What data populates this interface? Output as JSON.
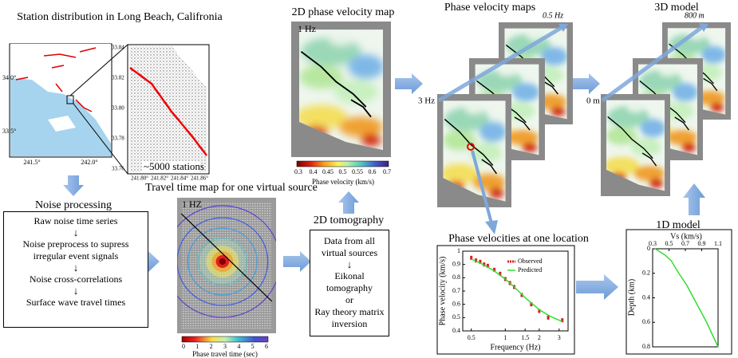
{
  "station_panel": {
    "title": "Station distribution in Long Beach, Califronia",
    "regional_map": {
      "lat_labels": [
        "34.0°",
        "33.5°"
      ],
      "lon_labels": [
        "241.5°",
        "242.0°"
      ]
    },
    "zoom_map": {
      "lat_labels": [
        "33.84",
        "33.82",
        "33.80",
        "33.78",
        "33.76"
      ],
      "lon_labels": [
        "241.80°",
        "241.82°",
        "241.84°",
        "241.86°"
      ],
      "caption": "~5000 stations"
    }
  },
  "noise_processing": {
    "title": "Noise processing",
    "steps": [
      "Raw noise time series",
      "Noise preprocess to supress irregular event signals",
      "Noise cross-correlations",
      "Surface wave travel times"
    ]
  },
  "travel_time_map": {
    "title": "Travel time map for one virtual source",
    "frequency": "1 HZ",
    "colorbar": {
      "ticks": [
        "0",
        "1",
        "2",
        "3",
        "4",
        "5",
        "6"
      ],
      "label": "Phase travel time (sec)"
    }
  },
  "tomography": {
    "title": "2D tomography",
    "lines": [
      "Data from all virtual sources",
      "Eikonal tomography",
      "or",
      "Ray theory matrix inversion"
    ]
  },
  "phase_velocity_map": {
    "title": "2D phase velocity map",
    "frequency": "1 Hz",
    "colorbar": {
      "ticks": [
        "0.3",
        "0.4",
        "0.45",
        "0.5",
        "0.55",
        "0.6",
        "0.7"
      ],
      "label": "Phase velocity (km/s)"
    }
  },
  "phase_velocity_maps": {
    "title": "Phase velocity maps",
    "low_frequency": "0.5 Hz",
    "high_frequency": "3 Hz"
  },
  "model_3d": {
    "title": "3D model",
    "bottom_depth": "800 m",
    "top_depth": "0 m"
  },
  "dispersion_plot": {
    "type": "scatter",
    "title": "Phase velocities at one location",
    "x_label": "Frequency (Hz)",
    "y_label": "Phase velocity (km/s)",
    "x_log": true,
    "xlim": [
      0.42,
      3.6
    ],
    "xticks": [
      0.5,
      1,
      1.5,
      2,
      3
    ],
    "ylim": [
      0.4,
      1
    ],
    "yticks": [
      0.4,
      0.5,
      0.6,
      0.7,
      0.8,
      0.9,
      1
    ],
    "series": [
      {
        "name": "Observed",
        "color": "#d42020",
        "x": [
          0.5,
          0.55,
          0.6,
          0.65,
          0.7,
          0.8,
          0.9,
          1.0,
          1.1,
          1.2,
          1.4,
          1.7,
          2.0,
          2.4,
          3.2
        ],
        "values": [
          0.95,
          0.93,
          0.92,
          0.9,
          0.89,
          0.86,
          0.83,
          0.79,
          0.76,
          0.73,
          0.67,
          0.6,
          0.55,
          0.5,
          0.48
        ]
      },
      {
        "name": "Predicted",
        "color": "#33dd33",
        "x": [
          0.5,
          0.6,
          0.7,
          0.8,
          1.0,
          1.2,
          1.5,
          2.0,
          2.5,
          3.2
        ],
        "values": [
          0.94,
          0.91,
          0.88,
          0.85,
          0.79,
          0.73,
          0.65,
          0.56,
          0.51,
          0.47
        ]
      }
    ]
  },
  "model_1d": {
    "type": "line",
    "title": "1D model",
    "x_label": "Vs (km/s)",
    "y_label": "Depth (km)",
    "xlim": [
      0.3,
      1.1
    ],
    "xticks": [
      0.3,
      0.5,
      0.7,
      0.9,
      1.1
    ],
    "ylim": [
      0,
      0.8
    ],
    "yticks": [
      0,
      0.2,
      0.4,
      0.6,
      0.8
    ],
    "color": "#33dd33",
    "depth": [
      0,
      0.05,
      0.1,
      0.2,
      0.3,
      0.4,
      0.5,
      0.6,
      0.7,
      0.8
    ],
    "vs": [
      0.33,
      0.45,
      0.53,
      0.62,
      0.72,
      0.8,
      0.88,
      0.96,
      1.03,
      1.1
    ]
  }
}
